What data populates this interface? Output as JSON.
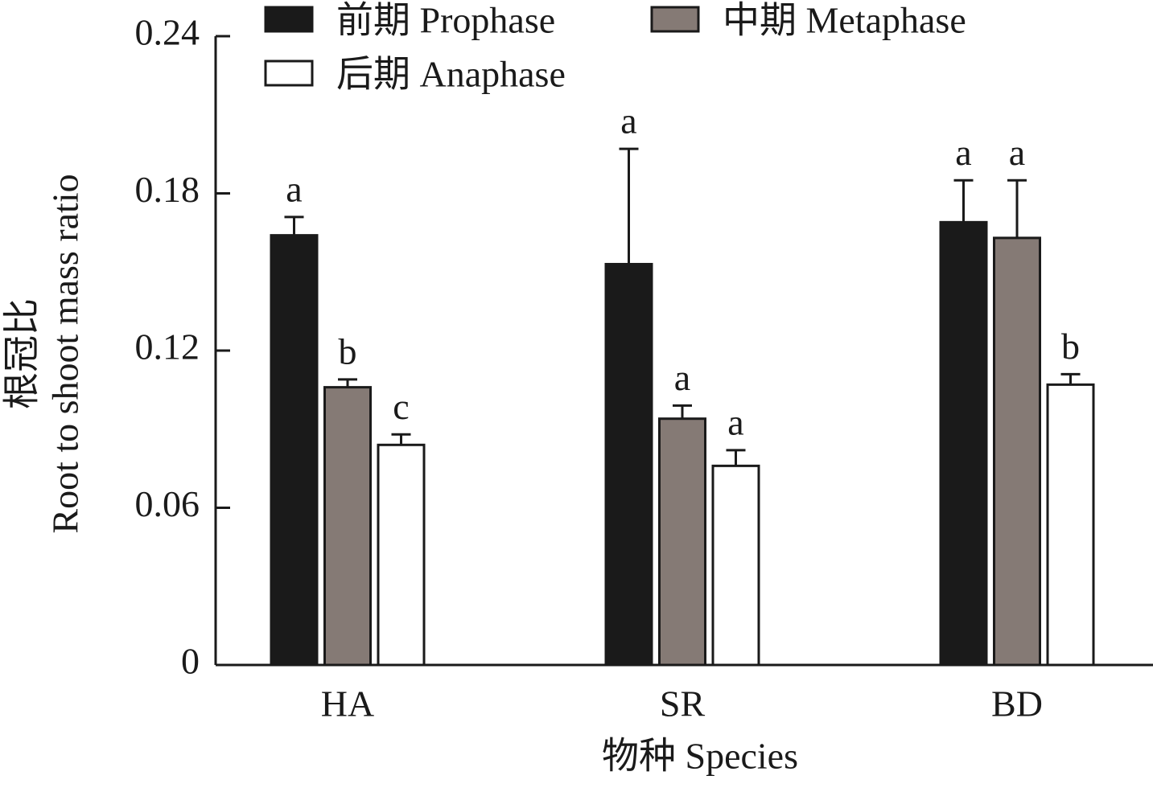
{
  "chart_data": {
    "type": "bar",
    "y_label": [
      "根冠比",
      "Root to shoot mass ratio"
    ],
    "x_label": "物种 Species",
    "categories": [
      "HA",
      "SR",
      "BD"
    ],
    "series": [
      {
        "name": "前期 Prophase",
        "color": "#1a1a1a",
        "values": [
          0.164,
          0.153,
          0.169
        ],
        "errors": [
          0.007,
          0.044,
          0.016
        ],
        "labels": [
          "a",
          "a",
          "a"
        ]
      },
      {
        "name": "中期 Metaphase",
        "color": "#857a75",
        "values": [
          0.106,
          0.094,
          0.163
        ],
        "errors": [
          0.003,
          0.005,
          0.022
        ],
        "labels": [
          "b",
          "a",
          "a"
        ]
      },
      {
        "name": "后期 Anaphase",
        "color": "#ffffff",
        "values": [
          0.084,
          0.076,
          0.107
        ],
        "errors": [
          0.004,
          0.006,
          0.004
        ],
        "labels": [
          "c",
          "a",
          "b"
        ]
      }
    ],
    "ylim": [
      0,
      0.24
    ],
    "yticks": [
      0,
      0.06,
      0.12,
      0.18,
      0.24
    ]
  }
}
